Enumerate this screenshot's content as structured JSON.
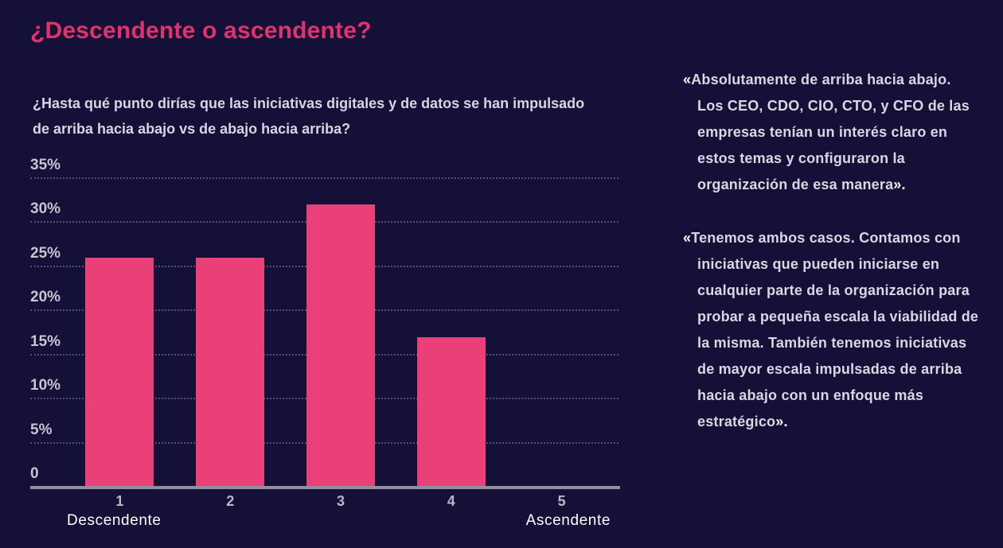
{
  "page": {
    "background": "#151038",
    "accent_pink": "#E2326D"
  },
  "header": {
    "title": "¿Descendente o ascendente?",
    "subtitle": "¿Hasta qué punto dirías que las iniciativas digitales y de datos se han impulsado de arriba hacia abajo vs de abajo hacia arriba?"
  },
  "chart_data": {
    "type": "bar",
    "title": "¿Descendente o ascendente?",
    "categories": [
      "1",
      "2",
      "3",
      "4",
      "5"
    ],
    "values": [
      26,
      26,
      32,
      17,
      0
    ],
    "unit": "%",
    "xlabel": "",
    "ylabel": "",
    "ylim": [
      0,
      35
    ],
    "grid": true,
    "legend": false,
    "bar_color": "#E84077",
    "y_ticks": [
      {
        "value": 0,
        "label": "0"
      },
      {
        "value": 5,
        "label": "5%"
      },
      {
        "value": 10,
        "label": "10%"
      },
      {
        "value": 15,
        "label": "15%"
      },
      {
        "value": 20,
        "label": "20%"
      },
      {
        "value": 25,
        "label": "25%"
      },
      {
        "value": 30,
        "label": "30%"
      },
      {
        "value": 35,
        "label": "35%"
      }
    ],
    "x_axis_caption_left": "Descendente",
    "x_axis_caption_right": "Ascendente"
  },
  "quotes": [
    {
      "open": "«",
      "text": "Absolutamente de arriba hacia abajo. Los CEO, CDO, CIO, CTO, y CFO de las empresas tenían un interés claro en estos temas y configuraron la organización de esa manera",
      "close": "»."
    },
    {
      "open": "«",
      "text": "Tenemos ambos casos. Contamos con iniciativas que pueden iniciarse en cualquier parte de la organización para probar a pequeña escala la viabilidad de la misma. También tenemos iniciativas de mayor escala impulsadas de arriba hacia abajo con un enfoque más estratégico",
      "close": "»."
    }
  ]
}
